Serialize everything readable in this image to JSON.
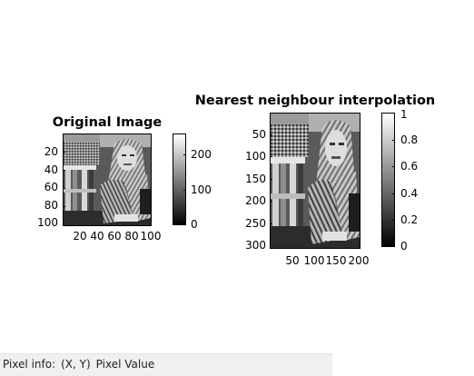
{
  "figure": {
    "left_title": "Original Image",
    "right_title": "Nearest neighbour interpolation"
  },
  "left_axes": {
    "y_ticks": [
      "20",
      "40",
      "60",
      "80",
      "100"
    ],
    "x_ticks": [
      "20",
      "40",
      "60",
      "80",
      "100"
    ]
  },
  "left_colorbar": {
    "ticks": [
      "200",
      "100",
      "0"
    ]
  },
  "right_axes": {
    "y_ticks": [
      "50",
      "100",
      "150",
      "200",
      "250",
      "300"
    ],
    "x_ticks": [
      "50",
      "100",
      "150",
      "200"
    ]
  },
  "right_colorbar": {
    "ticks": [
      "1",
      "0.8",
      "0.6",
      "0.4",
      "0.2",
      "0"
    ]
  },
  "statusbar": {
    "label": "Pixel info:",
    "coords": "(X, Y)",
    "value": "Pixel Value"
  }
}
